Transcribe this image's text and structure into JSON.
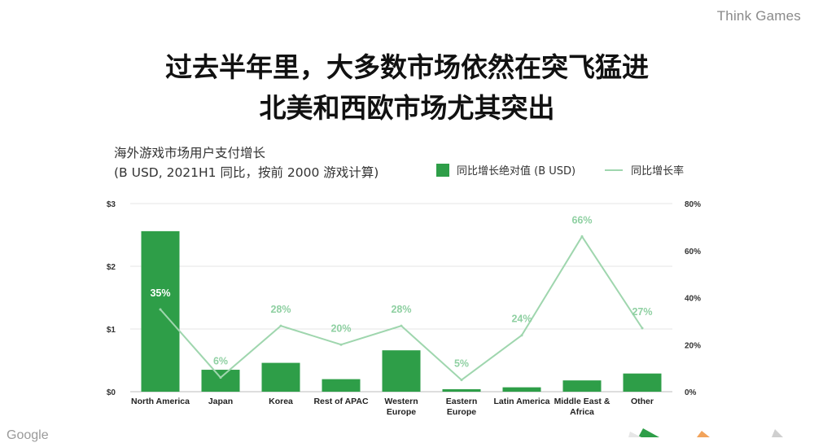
{
  "brand": "Think Games",
  "title_lines": [
    "过去半年里，大多数市场依然在突飞猛进",
    "北美和西欧市场尤其突出"
  ],
  "footer_logo": "Google",
  "colors": {
    "bar": "#2e9e48",
    "line": "#9fd6ae",
    "label": "#8fd0a2",
    "grid": "#e6e6e6"
  },
  "chart_data": {
    "type": "bar+line",
    "title": "海外游戏市场用户支付增长",
    "subtitle": "(B USD, 2021H1 同比，按前 2000 游戏计算)",
    "categories": [
      "North America",
      "Japan",
      "Korea",
      "Rest of APAC",
      "Western Europe",
      "Eastern Europe",
      "Latin America",
      "Middle East & Africa",
      "Other"
    ],
    "category_labels": [
      [
        "North America"
      ],
      [
        "Japan"
      ],
      [
        "Korea"
      ],
      [
        "Rest of APAC"
      ],
      [
        "Western",
        "Europe"
      ],
      [
        "Eastern",
        "Europe"
      ],
      [
        "Latin America"
      ],
      [
        "Middle East &",
        "Africa"
      ],
      [
        "Other"
      ]
    ],
    "series": [
      {
        "name": "同比增长绝对值 (B USD)",
        "type": "bar",
        "axis": "left",
        "values": [
          2.56,
          0.35,
          0.46,
          0.2,
          0.66,
          0.04,
          0.07,
          0.18,
          0.29
        ]
      },
      {
        "name": "同比增长率",
        "type": "line",
        "axis": "right",
        "values": [
          35,
          6,
          28,
          20,
          28,
          5,
          24,
          66,
          27
        ],
        "labels": [
          "35%",
          "6%",
          "28%",
          "20%",
          "28%",
          "5%",
          "24%",
          "66%",
          "27%"
        ]
      }
    ],
    "y_left": {
      "ticks": [
        "$0",
        "$1",
        "$2",
        "$3"
      ],
      "range": [
        0,
        3
      ]
    },
    "y_right": {
      "ticks": [
        "0%",
        "20%",
        "40%",
        "60%",
        "80%"
      ],
      "range": [
        0,
        80
      ]
    },
    "grid": true,
    "legend_position": "top-right"
  }
}
